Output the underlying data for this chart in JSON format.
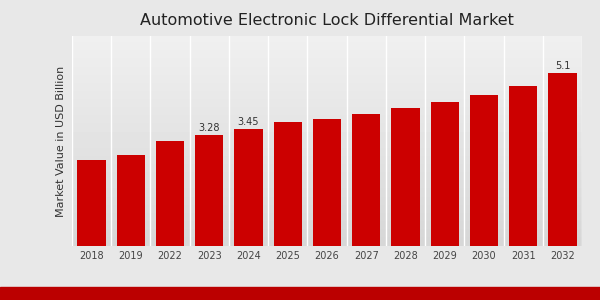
{
  "title": "Automotive Electronic Lock Differential Market",
  "ylabel": "Market Value in USD Billion",
  "categories": [
    "2018",
    "2019",
    "2022",
    "2023",
    "2024",
    "2025",
    "2026",
    "2027",
    "2028",
    "2029",
    "2030",
    "2031",
    "2032"
  ],
  "values": [
    2.55,
    2.68,
    3.1,
    3.28,
    3.45,
    3.65,
    3.75,
    3.9,
    4.08,
    4.25,
    4.45,
    4.72,
    5.1
  ],
  "bar_color": "#cc0000",
  "bg_light": "#e8e8e8",
  "bg_dark": "#d0d0d0",
  "red_stripe_color": "#bb0000",
  "labeled_bars": {
    "2023": "3.28",
    "2024": "3.45",
    "2032": "5.1"
  },
  "ylim": [
    0,
    6.2
  ],
  "title_fontsize": 11.5,
  "label_fontsize": 7,
  "tick_fontsize": 7,
  "ylabel_fontsize": 8
}
